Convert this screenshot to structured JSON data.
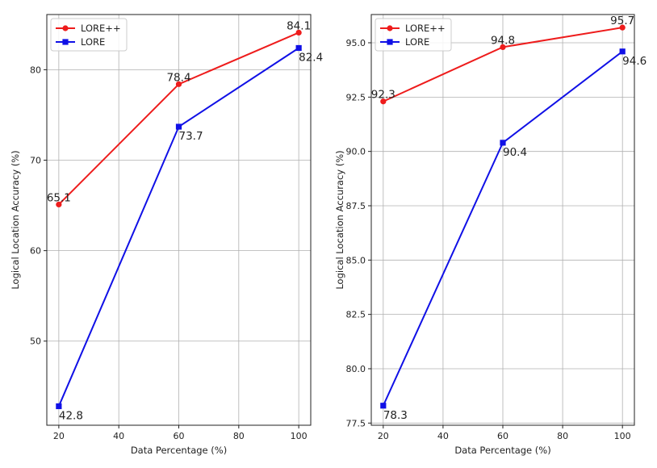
{
  "chart_data": [
    {
      "type": "line",
      "xlabel": "Data Percentage (%)",
      "ylabel": "Logical Location Accuracy (%)",
      "x": [
        20,
        60,
        100
      ],
      "xticks": [
        20,
        40,
        60,
        80,
        100
      ],
      "xtick_labels": [
        "20",
        "40",
        "60",
        "80",
        "100"
      ],
      "yticks": [
        50,
        60,
        70,
        80
      ],
      "ytick_labels": [
        "50",
        "60",
        "70",
        "80"
      ],
      "xlim": [
        16,
        104
      ],
      "ylim": [
        40.7,
        86.1
      ],
      "grid": true,
      "legend_position": "top-left",
      "series": [
        {
          "name": "LORE++",
          "values": [
            65.1,
            78.4,
            84.1
          ],
          "labels": [
            "65.1",
            "78.4",
            "84.1"
          ],
          "color": "#ee1c1c",
          "marker": "circle",
          "label_position": "above"
        },
        {
          "name": "LORE",
          "values": [
            42.8,
            73.7,
            82.4
          ],
          "labels": [
            "42.8",
            "73.7",
            "82.4"
          ],
          "color": "#1010e6",
          "marker": "square",
          "label_position": "below"
        }
      ]
    },
    {
      "type": "line",
      "xlabel": "Data Percentage (%)",
      "ylabel": "Logical Location Accuracy (%)",
      "x": [
        20,
        60,
        100
      ],
      "xticks": [
        20,
        40,
        60,
        80,
        100
      ],
      "xtick_labels": [
        "20",
        "40",
        "60",
        "80",
        "100"
      ],
      "yticks": [
        77.5,
        80.0,
        82.5,
        85.0,
        87.5,
        90.0,
        92.5,
        95.0
      ],
      "ytick_labels": [
        "77.5",
        "80.0",
        "82.5",
        "85.0",
        "87.5",
        "90.0",
        "92.5",
        "95.0"
      ],
      "xlim": [
        16,
        104
      ],
      "ylim": [
        77.4,
        96.3
      ],
      "grid": true,
      "legend_position": "top-left",
      "series": [
        {
          "name": "LORE++",
          "values": [
            92.3,
            94.8,
            95.7
          ],
          "labels": [
            "92.3",
            "94.8",
            "95.7"
          ],
          "color": "#ee1c1c",
          "marker": "circle",
          "label_position": "above"
        },
        {
          "name": "LORE",
          "values": [
            78.3,
            90.4,
            94.6
          ],
          "labels": [
            "78.3",
            "90.4",
            "94.6"
          ],
          "color": "#1010e6",
          "marker": "square",
          "label_position": "below"
        }
      ]
    }
  ]
}
